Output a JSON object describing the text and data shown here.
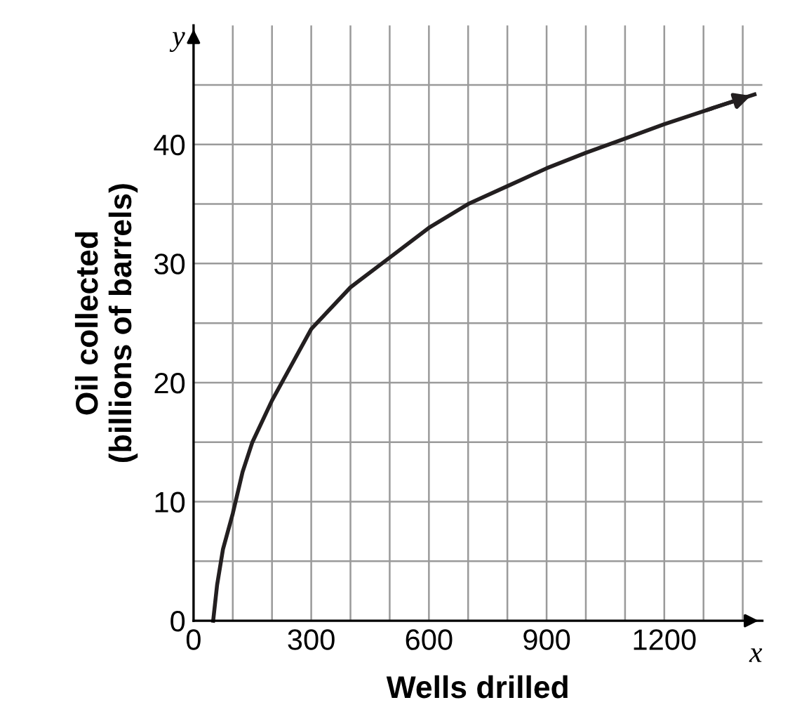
{
  "chart_data": {
    "type": "line",
    "xlabel": "Wells drilled",
    "ylabel": "Oil collected\n(billions of barrels)",
    "annotations": [
      "x",
      "y"
    ],
    "xlim": [
      0,
      1450
    ],
    "ylim": [
      0,
      50
    ],
    "xticks": [
      0,
      {
        "value": 100,
        "label": null
      },
      {
        "value": 200,
        "label": null
      },
      300,
      {
        "value": 400,
        "label": null
      },
      {
        "value": 500,
        "label": null
      },
      600,
      {
        "value": 700,
        "label": null
      },
      {
        "value": 800,
        "label": null
      },
      900,
      {
        "value": 1000,
        "label": null
      },
      {
        "value": 1100,
        "label": null
      },
      1200,
      {
        "value": 1300,
        "label": null
      },
      {
        "value": 1400,
        "label": null
      }
    ],
    "yticks": [
      0,
      {
        "value": 5,
        "label": null
      },
      10,
      {
        "value": 15,
        "label": null
      },
      20,
      {
        "value": 25,
        "label": null
      },
      30,
      {
        "value": 35,
        "label": null
      },
      40,
      {
        "value": 45,
        "label": null
      }
    ],
    "grid": true,
    "marker": "none",
    "line_style": "solid",
    "series": [
      {
        "color": "#231f20",
        "x": [
          50,
          60,
          75,
          100,
          125,
          150,
          200,
          250,
          300,
          400,
          500,
          600,
          700,
          800,
          900,
          1000,
          1100,
          1200,
          1300,
          1430
        ],
        "values": [
          0,
          3,
          6,
          9,
          12.5,
          15,
          18.5,
          21.5,
          24.5,
          28,
          30.5,
          33,
          35,
          36.5,
          38,
          39.3,
          40.5,
          41.7,
          42.8,
          44.2
        ]
      }
    ]
  }
}
